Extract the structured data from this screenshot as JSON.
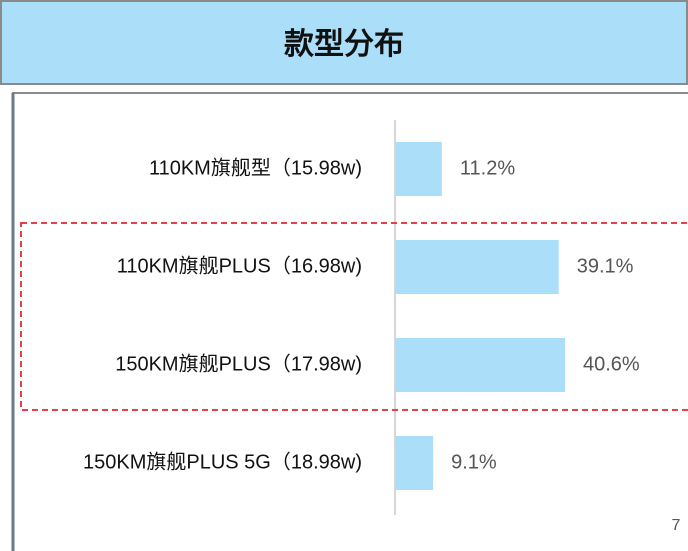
{
  "chart_data": {
    "type": "bar",
    "orientation": "horizontal",
    "title": "款型分布",
    "categories": [
      "110KM旗舰型（15.98w)",
      "110KM旗舰PLUS（16.98w)",
      "150KM旗舰PLUS（17.98w)",
      "150KM旗舰PLUS 5G（18.98w)"
    ],
    "values": [
      11.2,
      39.1,
      40.6,
      9.1
    ],
    "value_labels": [
      "11.2%",
      "39.1%",
      "40.6%",
      "9.1%"
    ],
    "color": "#abdff9"
  },
  "page_number": "7"
}
